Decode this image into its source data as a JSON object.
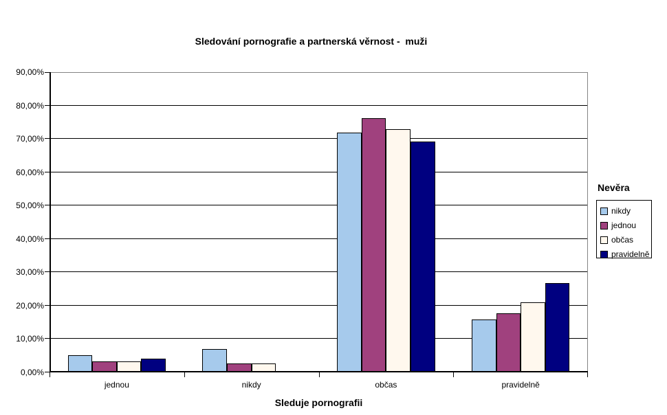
{
  "chart_data": {
    "type": "bar",
    "title": "Sledování pornografie a partnerská věrnost -  muži",
    "xlabel": "Sleduje pornografii",
    "ylabel": "",
    "categories": [
      "jednou",
      "nikdy",
      "občas",
      "pravidelně"
    ],
    "series": [
      {
        "name": "nikdy",
        "color": "#A6CAEC",
        "values": [
          5.2,
          7.0,
          71.9,
          15.9
        ]
      },
      {
        "name": "jednou",
        "color": "#A0417E",
        "values": [
          3.3,
          2.7,
          76.3,
          17.7
        ]
      },
      {
        "name": "občas",
        "color": "#FFF8EE",
        "values": [
          3.3,
          2.7,
          72.9,
          21.1
        ]
      },
      {
        "name": "pravidelně",
        "color": "#000080",
        "values": [
          4.1,
          0,
          69.2,
          26.7
        ]
      }
    ],
    "ylim": [
      0,
      90
    ],
    "ytick_step": 10,
    "ytick_labels": [
      "0,00%",
      "10,00%",
      "20,00%",
      "30,00%",
      "40,00%",
      "50,00%",
      "60,00%",
      "70,00%",
      "80,00%",
      "90,00%"
    ],
    "legend_title": "Nevěra",
    "legend_position": "right",
    "grid": "horizontal",
    "colors": {
      "gridline": "#000000",
      "plot_border": "#848484",
      "axis": "#000000",
      "bar_border": "#000000",
      "background": "#ffffff",
      "text": "#000000"
    }
  }
}
